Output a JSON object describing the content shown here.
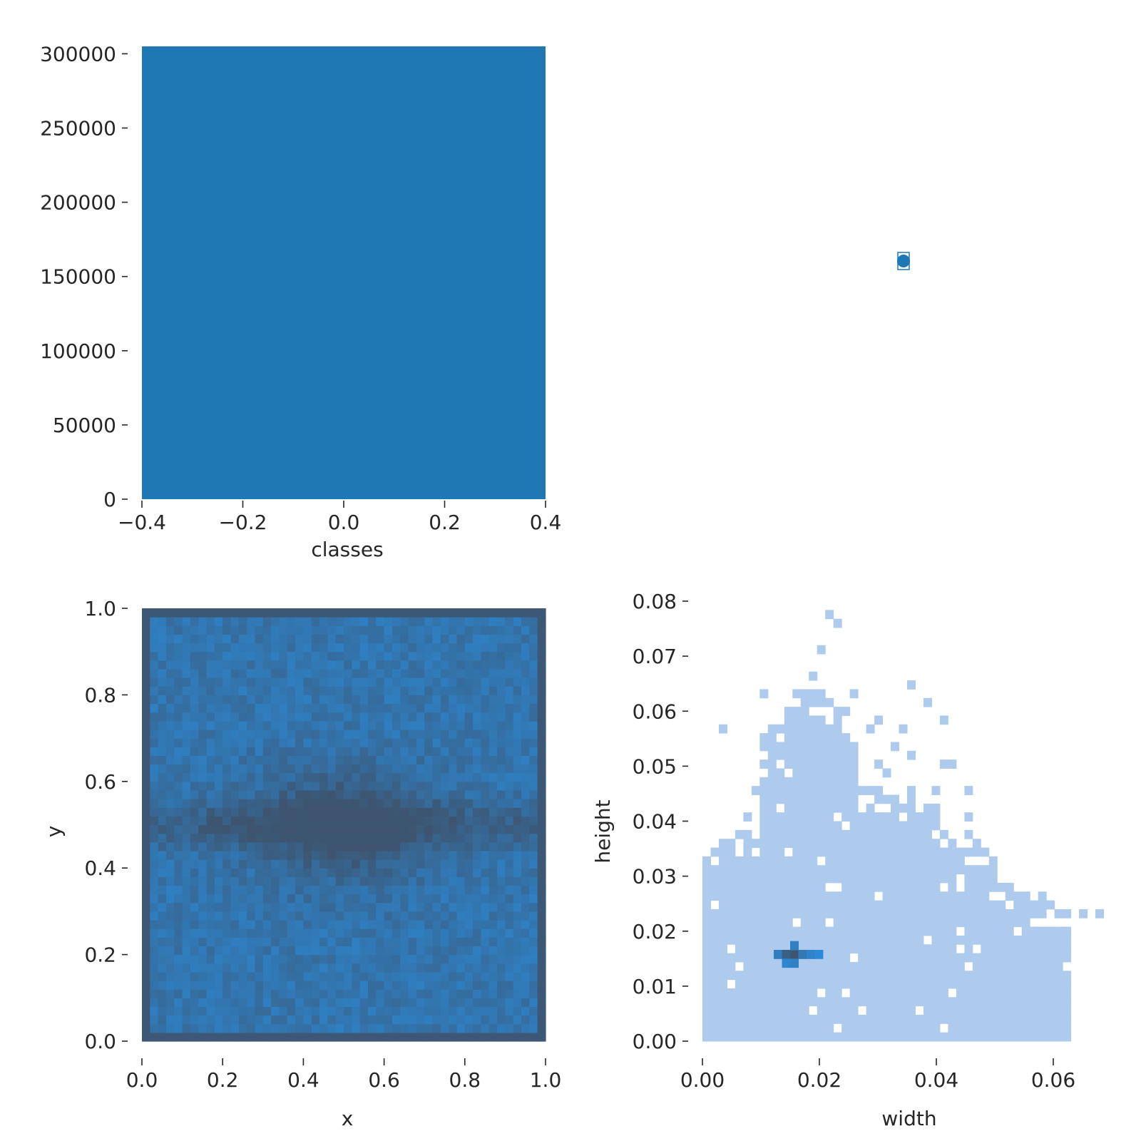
{
  "chart_data": [
    {
      "panel": "classes-histogram",
      "type": "bar",
      "xlabel": "classes",
      "ylabel": "",
      "xlim": [
        -0.4,
        0.4
      ],
      "ylim": [
        0,
        305000
      ],
      "xticks": [
        -0.4,
        -0.2,
        0.0,
        0.2,
        0.4
      ],
      "xtick_labels": [
        "−0.4",
        "−0.2",
        "0.0",
        "0.2",
        "0.4"
      ],
      "yticks": [
        0,
        50000,
        100000,
        150000,
        200000,
        250000,
        300000
      ],
      "ytick_labels": [
        "0",
        "50000",
        "100000",
        "150000",
        "200000",
        "250000",
        "300000"
      ],
      "bars": [
        {
          "x0": -0.4,
          "x1": 0.4,
          "value": 305000
        }
      ],
      "color": "#1f77b4"
    },
    {
      "panel": "empty-marker-panel",
      "type": "scatter",
      "note_marker_color": "#1f77b4",
      "points": [
        {
          "x": 0,
          "y": 0
        }
      ]
    },
    {
      "panel": "xy-heatmap",
      "type": "heatmap",
      "xlabel": "x",
      "ylabel": "y",
      "xlim": [
        0.0,
        1.0
      ],
      "ylim": [
        0.0,
        1.0
      ],
      "xticks": [
        0.0,
        0.2,
        0.4,
        0.6,
        0.8,
        1.0
      ],
      "xtick_labels": [
        "0.0",
        "0.2",
        "0.4",
        "0.6",
        "0.8",
        "1.0"
      ],
      "yticks": [
        0.0,
        0.2,
        0.4,
        0.6,
        0.8,
        1.0
      ],
      "ytick_labels": [
        "0.0",
        "0.2",
        "0.4",
        "0.6",
        "0.8",
        "1.0"
      ],
      "bins": 50,
      "colormap": [
        "#3d5570",
        "#2a8fe0"
      ],
      "description_pattern": "dense center around (0.5,0.5), lighter near edges, darker outermost border"
    },
    {
      "panel": "width-height-heatmap",
      "type": "heatmap",
      "xlabel": "width",
      "ylabel": "height",
      "xlim": [
        0.0,
        0.07
      ],
      "ylim": [
        0.0,
        0.08
      ],
      "xticks": [
        0.0,
        0.02,
        0.04,
        0.06
      ],
      "xtick_labels": [
        "0.00",
        "0.02",
        "0.04",
        "0.06"
      ],
      "yticks": [
        0.0,
        0.01,
        0.02,
        0.03,
        0.04,
        0.05,
        0.06,
        0.07,
        0.08
      ],
      "ytick_labels": [
        "0.00",
        "0.01",
        "0.02",
        "0.03",
        "0.04",
        "0.05",
        "0.06",
        "0.07",
        "0.08"
      ],
      "base_color": "#aecbee",
      "peak": {
        "width": 0.015,
        "height": 0.015
      },
      "peak_colors": [
        "#3d5570",
        "#2a8fe0"
      ]
    }
  ]
}
